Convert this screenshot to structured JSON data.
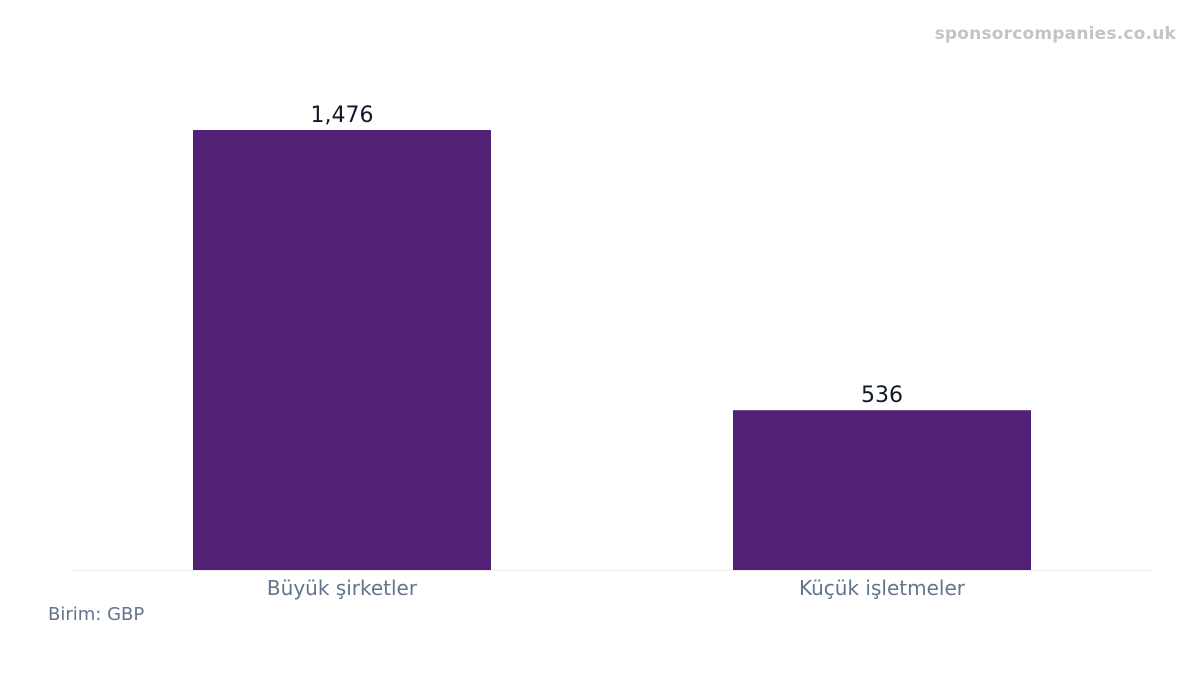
{
  "watermark": "sponsorcompanies.co.uk",
  "unit_note": "Birim: GBP",
  "colors": {
    "bar": "#522175",
    "value_label": "#111827",
    "tick_label": "#64748b",
    "baseline": "#eeeeee",
    "watermark": "#c4c4c4"
  },
  "chart_data": {
    "type": "bar",
    "categories": [
      "Büyük şirketler",
      "Küçük işletmeler"
    ],
    "values": [
      1476,
      536
    ],
    "value_labels": [
      "1,476",
      "536"
    ],
    "title": "",
    "xlabel": "",
    "ylabel": "",
    "ylim": [
      0,
      1476
    ],
    "grid": false,
    "legend": "none"
  }
}
